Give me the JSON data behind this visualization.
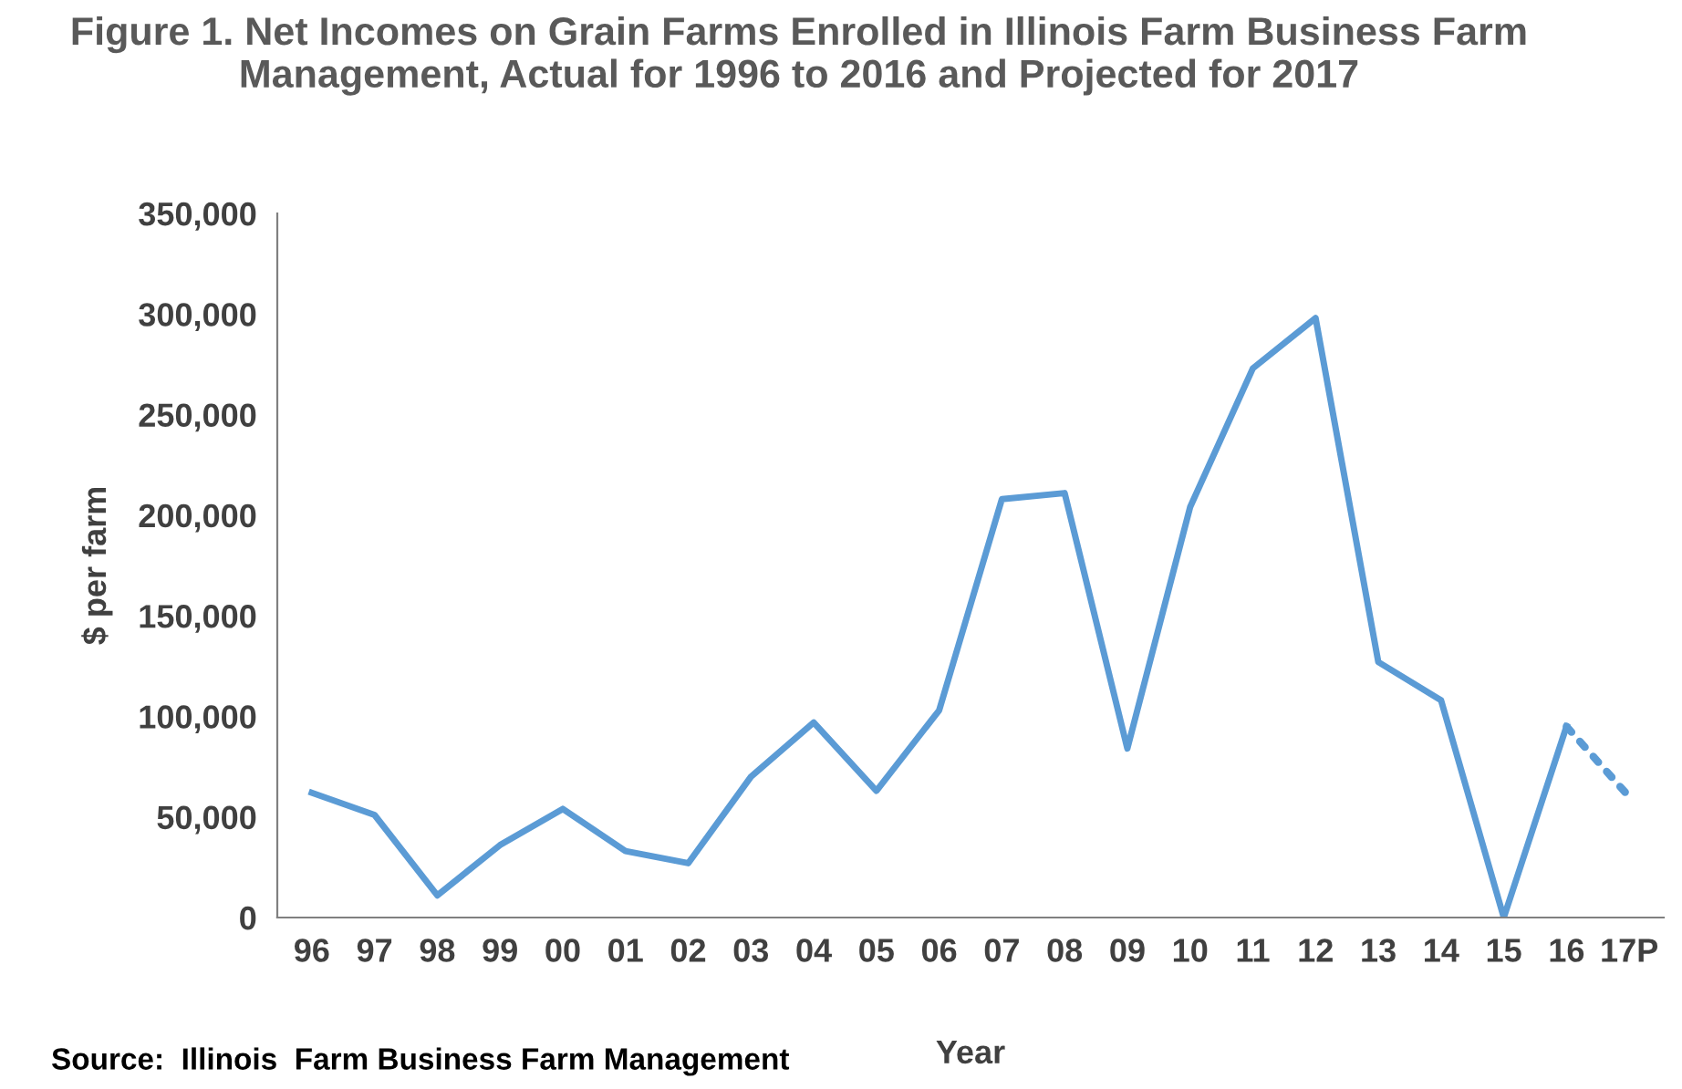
{
  "chart_data": {
    "type": "line",
    "title": "Figure 1. Net Incomes on Grain Farms Enrolled in Illinois Farm Business Farm Management, Actual for 1996 to 2016 and Projected for 2017",
    "xlabel": "Year",
    "ylabel": "$ per farm",
    "categories": [
      "96",
      "97",
      "98",
      "99",
      "00",
      "01",
      "02",
      "03",
      "04",
      "05",
      "06",
      "07",
      "08",
      "09",
      "10",
      "11",
      "12",
      "13",
      "14",
      "15",
      "16",
      "17P"
    ],
    "series": [
      {
        "color": "#5b9bd5",
        "line_style": "solid",
        "values": [
          62000,
          51000,
          11000,
          36000,
          54000,
          33000,
          27000,
          70000,
          97000,
          63000,
          103000,
          208000,
          211000,
          84000,
          204000,
          273000,
          298000,
          127000,
          108000,
          0,
          95000,
          null
        ]
      },
      {
        "color": "#5b9bd5",
        "line_style": "dotted",
        "values": [
          null,
          null,
          null,
          null,
          null,
          null,
          null,
          null,
          null,
          null,
          null,
          null,
          null,
          null,
          null,
          null,
          null,
          null,
          null,
          null,
          95000,
          60000
        ]
      }
    ],
    "ylim": [
      0,
      350000
    ],
    "yticks": [
      {
        "value": 0,
        "label": "0"
      },
      {
        "value": 50000,
        "label": "50,000"
      },
      {
        "value": 100000,
        "label": "100,000"
      },
      {
        "value": 150000,
        "label": "150,000"
      },
      {
        "value": 200000,
        "label": "200,000"
      },
      {
        "value": 250000,
        "label": "250,000"
      },
      {
        "value": 300000,
        "label": "300,000"
      },
      {
        "value": 350000,
        "label": "350,000"
      }
    ],
    "grid": false,
    "legend": false,
    "marker": "none",
    "annotations": [
      "Source:  Illinois  Farm Business Farm Management"
    ]
  }
}
